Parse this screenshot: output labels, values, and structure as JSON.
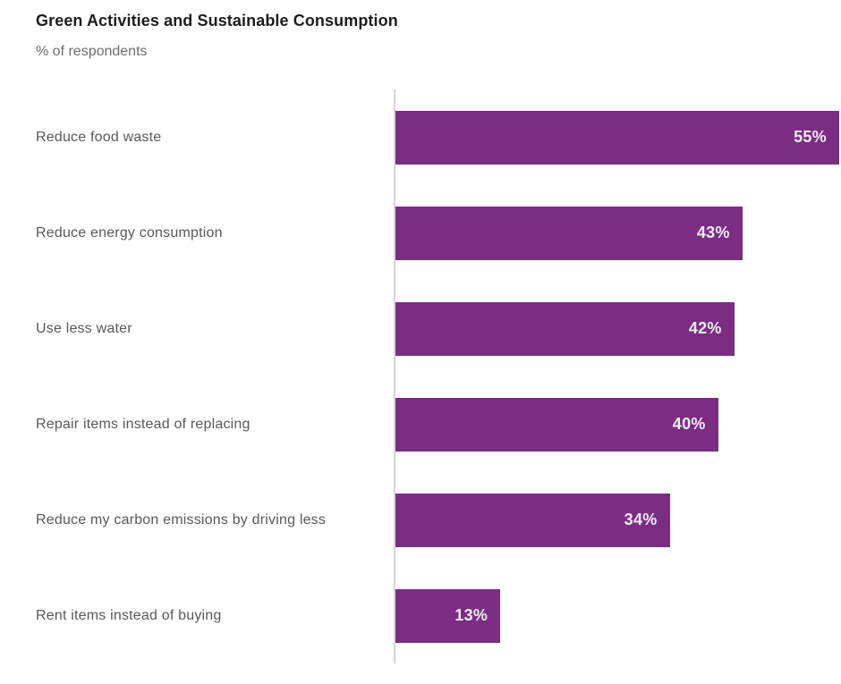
{
  "header": {
    "title": "Green Activities and Sustainable Consumption",
    "subtitle": "% of respondents"
  },
  "chart_data": {
    "type": "bar",
    "orientation": "horizontal",
    "title": "Green Activities and Sustainable Consumption",
    "subtitle": "% of respondents",
    "xlabel": "",
    "ylabel": "",
    "categories": [
      "Reduce food waste",
      "Reduce energy consumption",
      "Use less water",
      "Repair items instead of replacing",
      "Reduce my carbon emissions by driving less",
      "Rent items instead of buying"
    ],
    "values": [
      55,
      43,
      42,
      40,
      34,
      13
    ],
    "value_labels": [
      "55%",
      "43%",
      "42%",
      "40%",
      "34%",
      "13%"
    ],
    "unit": "percent",
    "xlim": [
      0,
      55
    ],
    "grid": false,
    "legend": null,
    "colors": {
      "bar": "#7b2d84",
      "value_label": "#f2edf4",
      "category_label": "#58595b",
      "title": "#1d1d1f",
      "subtitle": "#6d6e71",
      "axis_line": "#d5d5d7"
    }
  }
}
